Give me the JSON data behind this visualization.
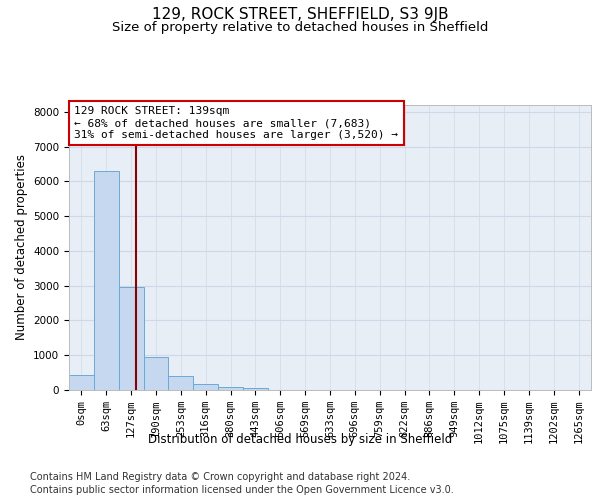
{
  "title": "129, ROCK STREET, SHEFFIELD, S3 9JB",
  "subtitle": "Size of property relative to detached houses in Sheffield",
  "xlabel": "Distribution of detached houses by size in Sheffield",
  "ylabel": "Number of detached properties",
  "footnote1": "Contains HM Land Registry data © Crown copyright and database right 2024.",
  "footnote2": "Contains public sector information licensed under the Open Government Licence v3.0.",
  "annotation_line1": "129 ROCK STREET: 139sqm",
  "annotation_line2": "← 68% of detached houses are smaller (7,683)",
  "annotation_line3": "31% of semi-detached houses are larger (3,520) →",
  "bar_categories": [
    "0sqm",
    "63sqm",
    "127sqm",
    "190sqm",
    "253sqm",
    "316sqm",
    "380sqm",
    "443sqm",
    "506sqm",
    "569sqm",
    "633sqm",
    "696sqm",
    "759sqm",
    "822sqm",
    "886sqm",
    "949sqm",
    "1012sqm",
    "1075sqm",
    "1139sqm",
    "1202sqm",
    "1265sqm"
  ],
  "bar_values": [
    430,
    6300,
    2950,
    950,
    400,
    180,
    100,
    70,
    0,
    0,
    0,
    0,
    0,
    0,
    0,
    0,
    0,
    0,
    0,
    0,
    0
  ],
  "bar_color": "#c5d8ef",
  "bar_edge_color": "#6aaad4",
  "vline_color": "#8b0000",
  "vline_x": 2.19,
  "ylim": [
    0,
    8200
  ],
  "yticks": [
    0,
    1000,
    2000,
    3000,
    4000,
    5000,
    6000,
    7000,
    8000
  ],
  "grid_color": "#d0d8e8",
  "bg_color": "#e8eef6",
  "annotation_box_color": "#cc0000",
  "title_fontsize": 11,
  "subtitle_fontsize": 9.5,
  "axis_label_fontsize": 8.5,
  "tick_fontsize": 7.5,
  "annotation_fontsize": 8,
  "footnote_fontsize": 7
}
